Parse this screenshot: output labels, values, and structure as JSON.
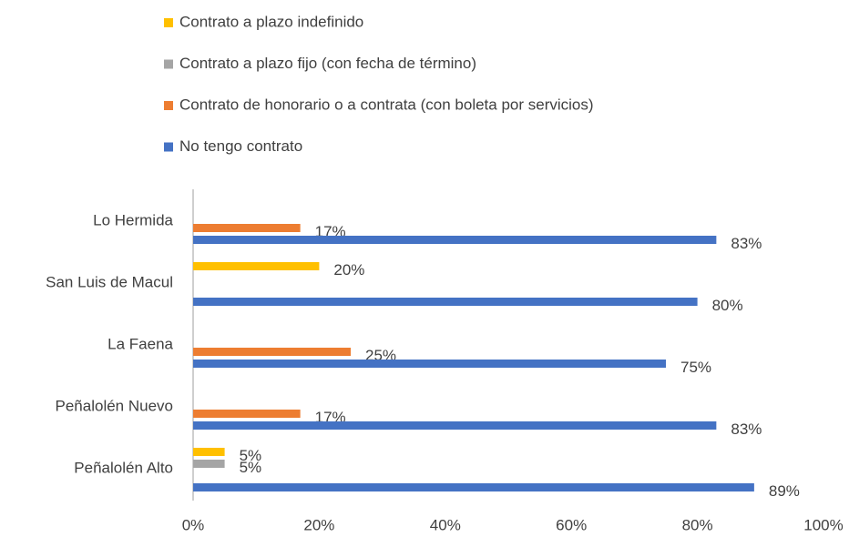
{
  "chart_data": {
    "type": "barh",
    "categories": [
      "Lo Hermida",
      "San Luis de Macul",
      "La Faena",
      "Peñalolén Nuevo",
      "Peñalolén Alto"
    ],
    "series": [
      {
        "name": "Contrato a plazo indefinido",
        "color": "#ffc000",
        "values": [
          null,
          20,
          null,
          null,
          5
        ],
        "value_labels": [
          null,
          "20%",
          null,
          null,
          "5%"
        ]
      },
      {
        "name": "Contrato a plazo fijo (con fecha de término)",
        "color": "#a5a5a5",
        "values": [
          null,
          null,
          null,
          null,
          5
        ],
        "value_labels": [
          null,
          null,
          null,
          null,
          "5%"
        ]
      },
      {
        "name": "Contrato de honorario o a contrata (con boleta por servicios)",
        "color": "#ed7d31",
        "values": [
          17,
          null,
          25,
          17,
          null
        ],
        "value_labels": [
          "17%",
          null,
          "25%",
          "17%",
          null
        ]
      },
      {
        "name": "No tengo contrato",
        "color": "#4472c4",
        "values": [
          83,
          80,
          75,
          83,
          89
        ],
        "value_labels": [
          "83%",
          "80%",
          "75%",
          "83%",
          "89%"
        ]
      }
    ],
    "xlim": [
      0,
      100
    ],
    "xticks": [
      {
        "value": 0,
        "label": "0%"
      },
      {
        "value": 20,
        "label": "20%"
      },
      {
        "value": 40,
        "label": "40%"
      },
      {
        "value": 60,
        "label": "60%"
      },
      {
        "value": 80,
        "label": "80%"
      },
      {
        "value": 100,
        "label": "100%"
      }
    ],
    "legend": "top"
  }
}
